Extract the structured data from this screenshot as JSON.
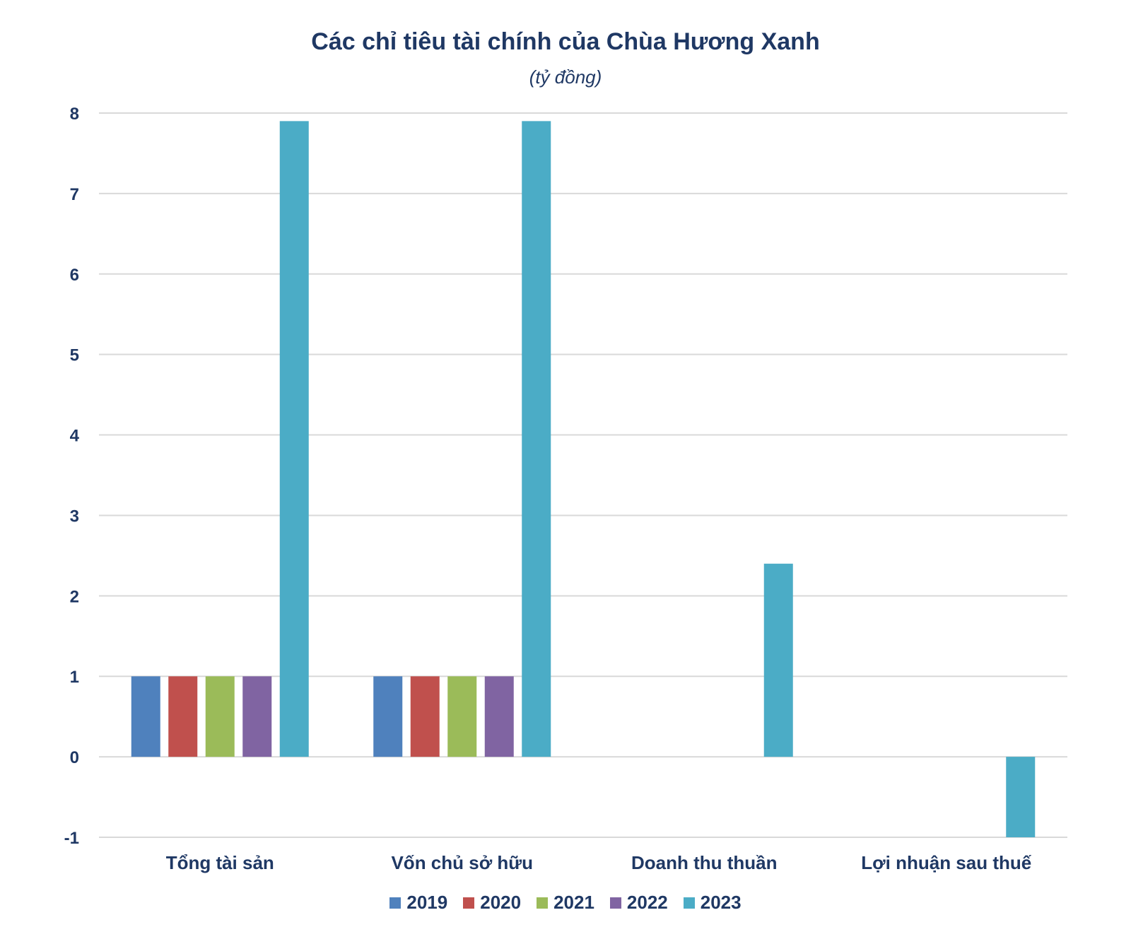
{
  "chart_data": {
    "type": "bar",
    "title": "Các chỉ tiêu tài chính của Chùa Hương Xanh",
    "subtitle": "(tỷ đồng)",
    "categories": [
      "Tổng tài sản",
      "Vốn chủ sở hữu",
      "Doanh thu thuần",
      "Lợi nhuận sau thuế"
    ],
    "series": [
      {
        "name": "2019",
        "color": "#4f81bd",
        "values": [
          1,
          1,
          0,
          0
        ]
      },
      {
        "name": "2020",
        "color": "#c0504d",
        "values": [
          1,
          1,
          0,
          0
        ]
      },
      {
        "name": "2021",
        "color": "#9bbb59",
        "values": [
          1,
          1,
          0,
          0
        ]
      },
      {
        "name": "2022",
        "color": "#8064a2",
        "values": [
          1,
          1,
          0,
          0
        ]
      },
      {
        "name": "2023",
        "color": "#4bacc6",
        "values": [
          7.9,
          7.9,
          2.4,
          -1
        ]
      }
    ],
    "ylim": [
      -1,
      8
    ],
    "yticks": [
      8,
      7,
      6,
      5,
      4,
      3,
      2,
      1,
      0,
      -1
    ],
    "grid": true,
    "legend_position": "bottom"
  }
}
